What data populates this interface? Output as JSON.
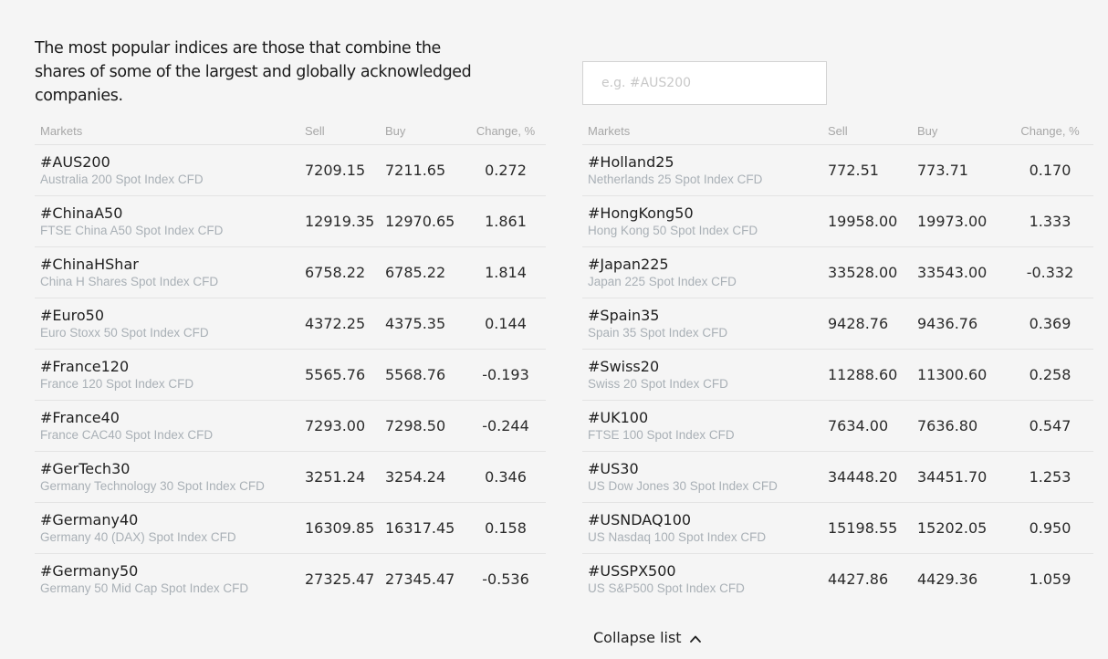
{
  "intro": "The most popular indices are those that combine the shares of some of the largest and globally acknowledged companies.",
  "search": {
    "placeholder": "e.g. #AUS200",
    "value": ""
  },
  "columns": {
    "markets": "Markets",
    "sell": "Sell",
    "buy": "Buy",
    "change": "Change, %"
  },
  "left_table": [
    {
      "symbol": "#AUS200",
      "name": "Australia 200 Spot Index CFD",
      "sell": "7209.15",
      "buy": "7211.65",
      "change": "0.272"
    },
    {
      "symbol": "#ChinaA50",
      "name": "FTSE China A50 Spot Index CFD",
      "sell": "12919.35",
      "buy": "12970.65",
      "change": "1.861"
    },
    {
      "symbol": "#ChinaHShar",
      "name": "China H Shares Spot Index CFD",
      "sell": "6758.22",
      "buy": "6785.22",
      "change": "1.814"
    },
    {
      "symbol": "#Euro50",
      "name": "Euro Stoxx 50 Spot Index CFD",
      "sell": "4372.25",
      "buy": "4375.35",
      "change": "0.144"
    },
    {
      "symbol": "#France120",
      "name": "France 120 Spot Index CFD",
      "sell": "5565.76",
      "buy": "5568.76",
      "change": "-0.193"
    },
    {
      "symbol": "#France40",
      "name": "France CAC40 Spot Index CFD",
      "sell": "7293.00",
      "buy": "7298.50",
      "change": "-0.244"
    },
    {
      "symbol": "#GerTech30",
      "name": "Germany Technology 30 Spot Index CFD",
      "sell": "3251.24",
      "buy": "3254.24",
      "change": "0.346"
    },
    {
      "symbol": "#Germany40",
      "name": "Germany 40 (DAX) Spot Index CFD",
      "sell": "16309.85",
      "buy": "16317.45",
      "change": "0.158"
    },
    {
      "symbol": "#Germany50",
      "name": "Germany 50 Mid Cap Spot Index CFD",
      "sell": "27325.47",
      "buy": "27345.47",
      "change": "-0.536"
    }
  ],
  "right_table": [
    {
      "symbol": "#Holland25",
      "name": "Netherlands 25 Spot Index CFD",
      "sell": "772.51",
      "buy": "773.71",
      "change": "0.170"
    },
    {
      "symbol": "#HongKong50",
      "name": "Hong Kong 50 Spot Index CFD",
      "sell": "19958.00",
      "buy": "19973.00",
      "change": "1.333"
    },
    {
      "symbol": "#Japan225",
      "name": "Japan 225 Spot Index CFD",
      "sell": "33528.00",
      "buy": "33543.00",
      "change": "-0.332"
    },
    {
      "symbol": "#Spain35",
      "name": "Spain 35 Spot Index CFD",
      "sell": "9428.76",
      "buy": "9436.76",
      "change": "0.369"
    },
    {
      "symbol": "#Swiss20",
      "name": "Swiss 20 Spot Index CFD",
      "sell": "11288.60",
      "buy": "11300.60",
      "change": "0.258"
    },
    {
      "symbol": "#UK100",
      "name": "FTSE 100 Spot Index CFD",
      "sell": "7634.00",
      "buy": "7636.80",
      "change": "0.547"
    },
    {
      "symbol": "#US30",
      "name": "US Dow Jones 30 Spot Index CFD",
      "sell": "34448.20",
      "buy": "34451.70",
      "change": "1.253"
    },
    {
      "symbol": "#USNDAQ100",
      "name": "US Nasdaq 100 Spot Index CFD",
      "sell": "15198.55",
      "buy": "15202.05",
      "change": "0.950"
    },
    {
      "symbol": "#USSPX500",
      "name": "US S&P500 Spot Index CFD",
      "sell": "4427.86",
      "buy": "4429.36",
      "change": "1.059"
    }
  ],
  "collapse_label": "Collapse list",
  "icons": {
    "collapse": "chevron-up-icon"
  }
}
